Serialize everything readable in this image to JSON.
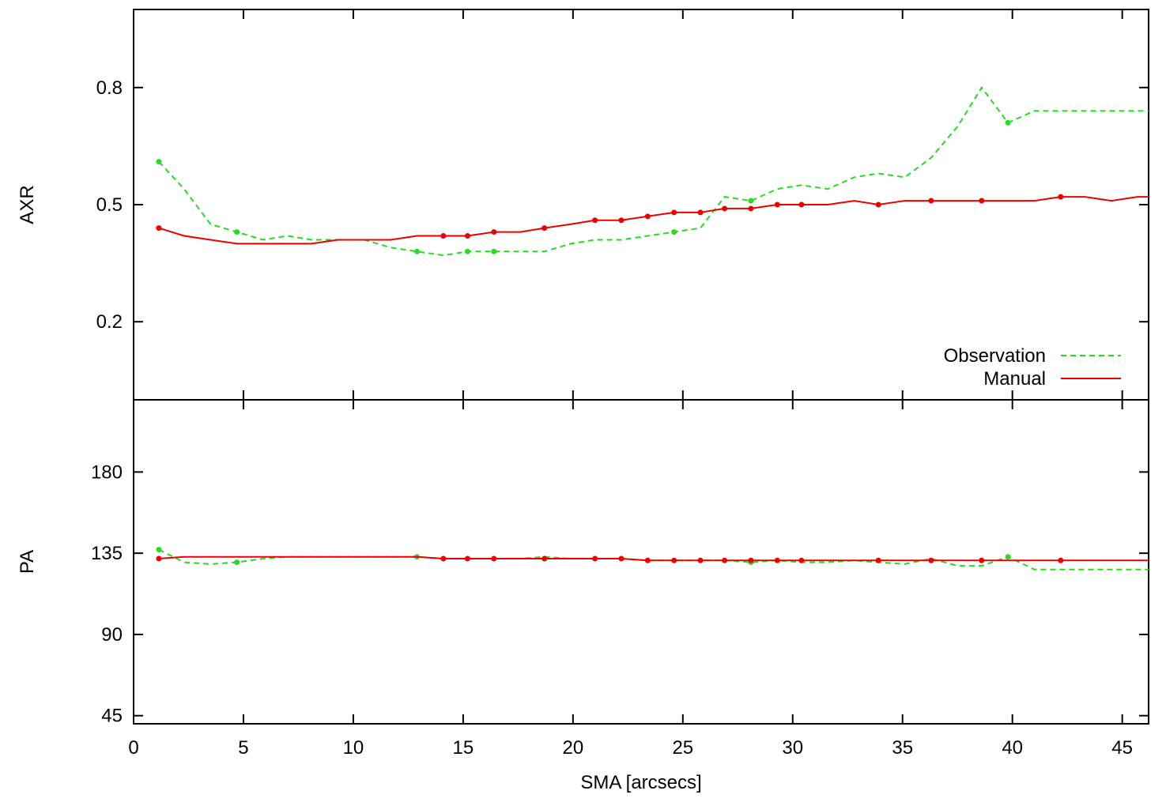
{
  "colors": {
    "observation": "#22dd22",
    "manual": "#ee0000",
    "axis": "#000000"
  },
  "chart_data": [
    {
      "type": "line",
      "ylabel": "AXR",
      "xlim": [
        0,
        46.2
      ],
      "ylim": [
        0,
        1
      ],
      "yticks": [
        0.2,
        0.5,
        0.8
      ],
      "ytick_labels": [
        "0.2",
        "0.5",
        "0.8"
      ],
      "legend_position": "bottom-right",
      "series": [
        {
          "name": "Observation",
          "style": "dashed",
          "color": "#22dd22",
          "x": [
            1.15,
            2.3,
            3.5,
            4.7,
            5.9,
            7.0,
            8.1,
            9.3,
            10.5,
            11.7,
            12.9,
            14.1,
            15.2,
            16.4,
            17.6,
            18.7,
            19.9,
            21.0,
            22.2,
            23.4,
            24.6,
            25.8,
            26.9,
            28.1,
            29.3,
            30.4,
            31.6,
            32.8,
            33.9,
            35.1,
            36.3,
            37.5,
            38.6,
            39.8,
            41.0,
            46.2
          ],
          "y": [
            0.61,
            0.54,
            0.45,
            0.43,
            0.41,
            0.42,
            0.41,
            0.41,
            0.41,
            0.39,
            0.38,
            0.37,
            0.38,
            0.38,
            0.38,
            0.38,
            0.4,
            0.41,
            0.41,
            0.42,
            0.43,
            0.44,
            0.52,
            0.51,
            0.54,
            0.55,
            0.54,
            0.57,
            0.58,
            0.57,
            0.62,
            0.7,
            0.8,
            0.71,
            0.74,
            0.74
          ],
          "marker_x": [
            1.15,
            4.7,
            12.9,
            15.2,
            16.4,
            24.6,
            28.1,
            39.8
          ]
        },
        {
          "name": "Manual",
          "style": "solid",
          "color": "#ee0000",
          "x": [
            1.15,
            2.3,
            3.5,
            4.7,
            5.9,
            7.0,
            8.1,
            9.3,
            10.5,
            11.7,
            12.9,
            14.1,
            15.2,
            16.4,
            17.6,
            18.7,
            19.9,
            21.0,
            22.2,
            23.4,
            24.6,
            25.8,
            26.9,
            28.1,
            29.3,
            30.4,
            31.6,
            32.8,
            33.9,
            35.1,
            36.3,
            37.5,
            38.6,
            39.8,
            41.0,
            42.2,
            43.3,
            44.5,
            45.7,
            46.2
          ],
          "y": [
            0.44,
            0.42,
            0.41,
            0.4,
            0.4,
            0.4,
            0.4,
            0.41,
            0.41,
            0.41,
            0.42,
            0.42,
            0.42,
            0.43,
            0.43,
            0.44,
            0.45,
            0.46,
            0.46,
            0.47,
            0.48,
            0.48,
            0.49,
            0.49,
            0.5,
            0.5,
            0.5,
            0.51,
            0.5,
            0.51,
            0.51,
            0.51,
            0.51,
            0.51,
            0.51,
            0.52,
            0.52,
            0.51,
            0.52,
            0.52
          ],
          "marker_x": [
            1.15,
            14.1,
            15.2,
            16.4,
            18.7,
            21.0,
            22.2,
            23.4,
            24.6,
            25.8,
            26.9,
            28.1,
            29.3,
            30.4,
            33.9,
            36.3,
            38.6,
            42.2
          ]
        }
      ]
    },
    {
      "type": "line",
      "ylabel": "PA",
      "xlabel": "SMA [arcsecs]",
      "xlim": [
        0,
        46.2
      ],
      "ylim": [
        40.5,
        220
      ],
      "xticks": [
        0,
        5,
        10,
        15,
        20,
        25,
        30,
        35,
        40,
        45
      ],
      "xtick_labels": [
        "0",
        "5",
        "10",
        "15",
        "20",
        "25",
        "30",
        "35",
        "40",
        "45"
      ],
      "yticks": [
        45,
        90,
        135,
        180
      ],
      "ytick_labels": [
        "45",
        "90",
        "135",
        "180"
      ],
      "series": [
        {
          "name": "Observation",
          "style": "dashed",
          "color": "#22dd22",
          "x": [
            1.15,
            2.3,
            3.5,
            4.7,
            5.9,
            7.0,
            8.1,
            9.3,
            10.5,
            11.7,
            12.9,
            14.1,
            15.2,
            16.4,
            17.6,
            18.7,
            19.9,
            21.0,
            22.2,
            23.4,
            24.6,
            25.8,
            26.9,
            28.1,
            29.3,
            30.4,
            31.6,
            32.8,
            33.9,
            35.1,
            36.3,
            37.5,
            38.6,
            39.8,
            41.0,
            46.2
          ],
          "y": [
            137,
            130,
            129,
            130,
            132,
            133,
            133,
            133,
            133,
            133,
            133,
            132,
            132,
            132,
            132,
            133,
            132,
            132,
            132,
            131,
            131,
            131,
            131,
            130,
            131,
            130,
            130,
            131,
            130,
            129,
            132,
            128,
            128,
            133,
            126,
            126
          ],
          "marker_x": [
            1.15,
            4.7,
            12.9,
            28.1,
            39.8
          ]
        },
        {
          "name": "Manual",
          "style": "solid",
          "color": "#ee0000",
          "x": [
            1.15,
            2.3,
            3.5,
            4.7,
            5.9,
            7.0,
            8.1,
            9.3,
            10.5,
            11.7,
            12.9,
            14.1,
            15.2,
            16.4,
            17.6,
            18.7,
            19.9,
            21.0,
            22.2,
            23.4,
            24.6,
            25.8,
            26.9,
            28.1,
            29.3,
            30.4,
            31.6,
            32.8,
            33.9,
            35.1,
            36.3,
            37.5,
            38.6,
            39.8,
            41.0,
            42.2,
            43.3,
            44.5,
            45.7,
            46.2
          ],
          "y": [
            132,
            133,
            133,
            133,
            133,
            133,
            133,
            133,
            133,
            133,
            133,
            132,
            132,
            132,
            132,
            132,
            132,
            132,
            132,
            131,
            131,
            131,
            131,
            131,
            131,
            131,
            131,
            131,
            131,
            131,
            131,
            131,
            131,
            131,
            131,
            131,
            131,
            131,
            131,
            131
          ],
          "marker_x": [
            1.15,
            14.1,
            15.2,
            16.4,
            18.7,
            21.0,
            22.2,
            23.4,
            24.6,
            25.8,
            26.9,
            28.1,
            29.3,
            30.4,
            33.9,
            36.3,
            38.6,
            42.2
          ]
        }
      ]
    }
  ]
}
